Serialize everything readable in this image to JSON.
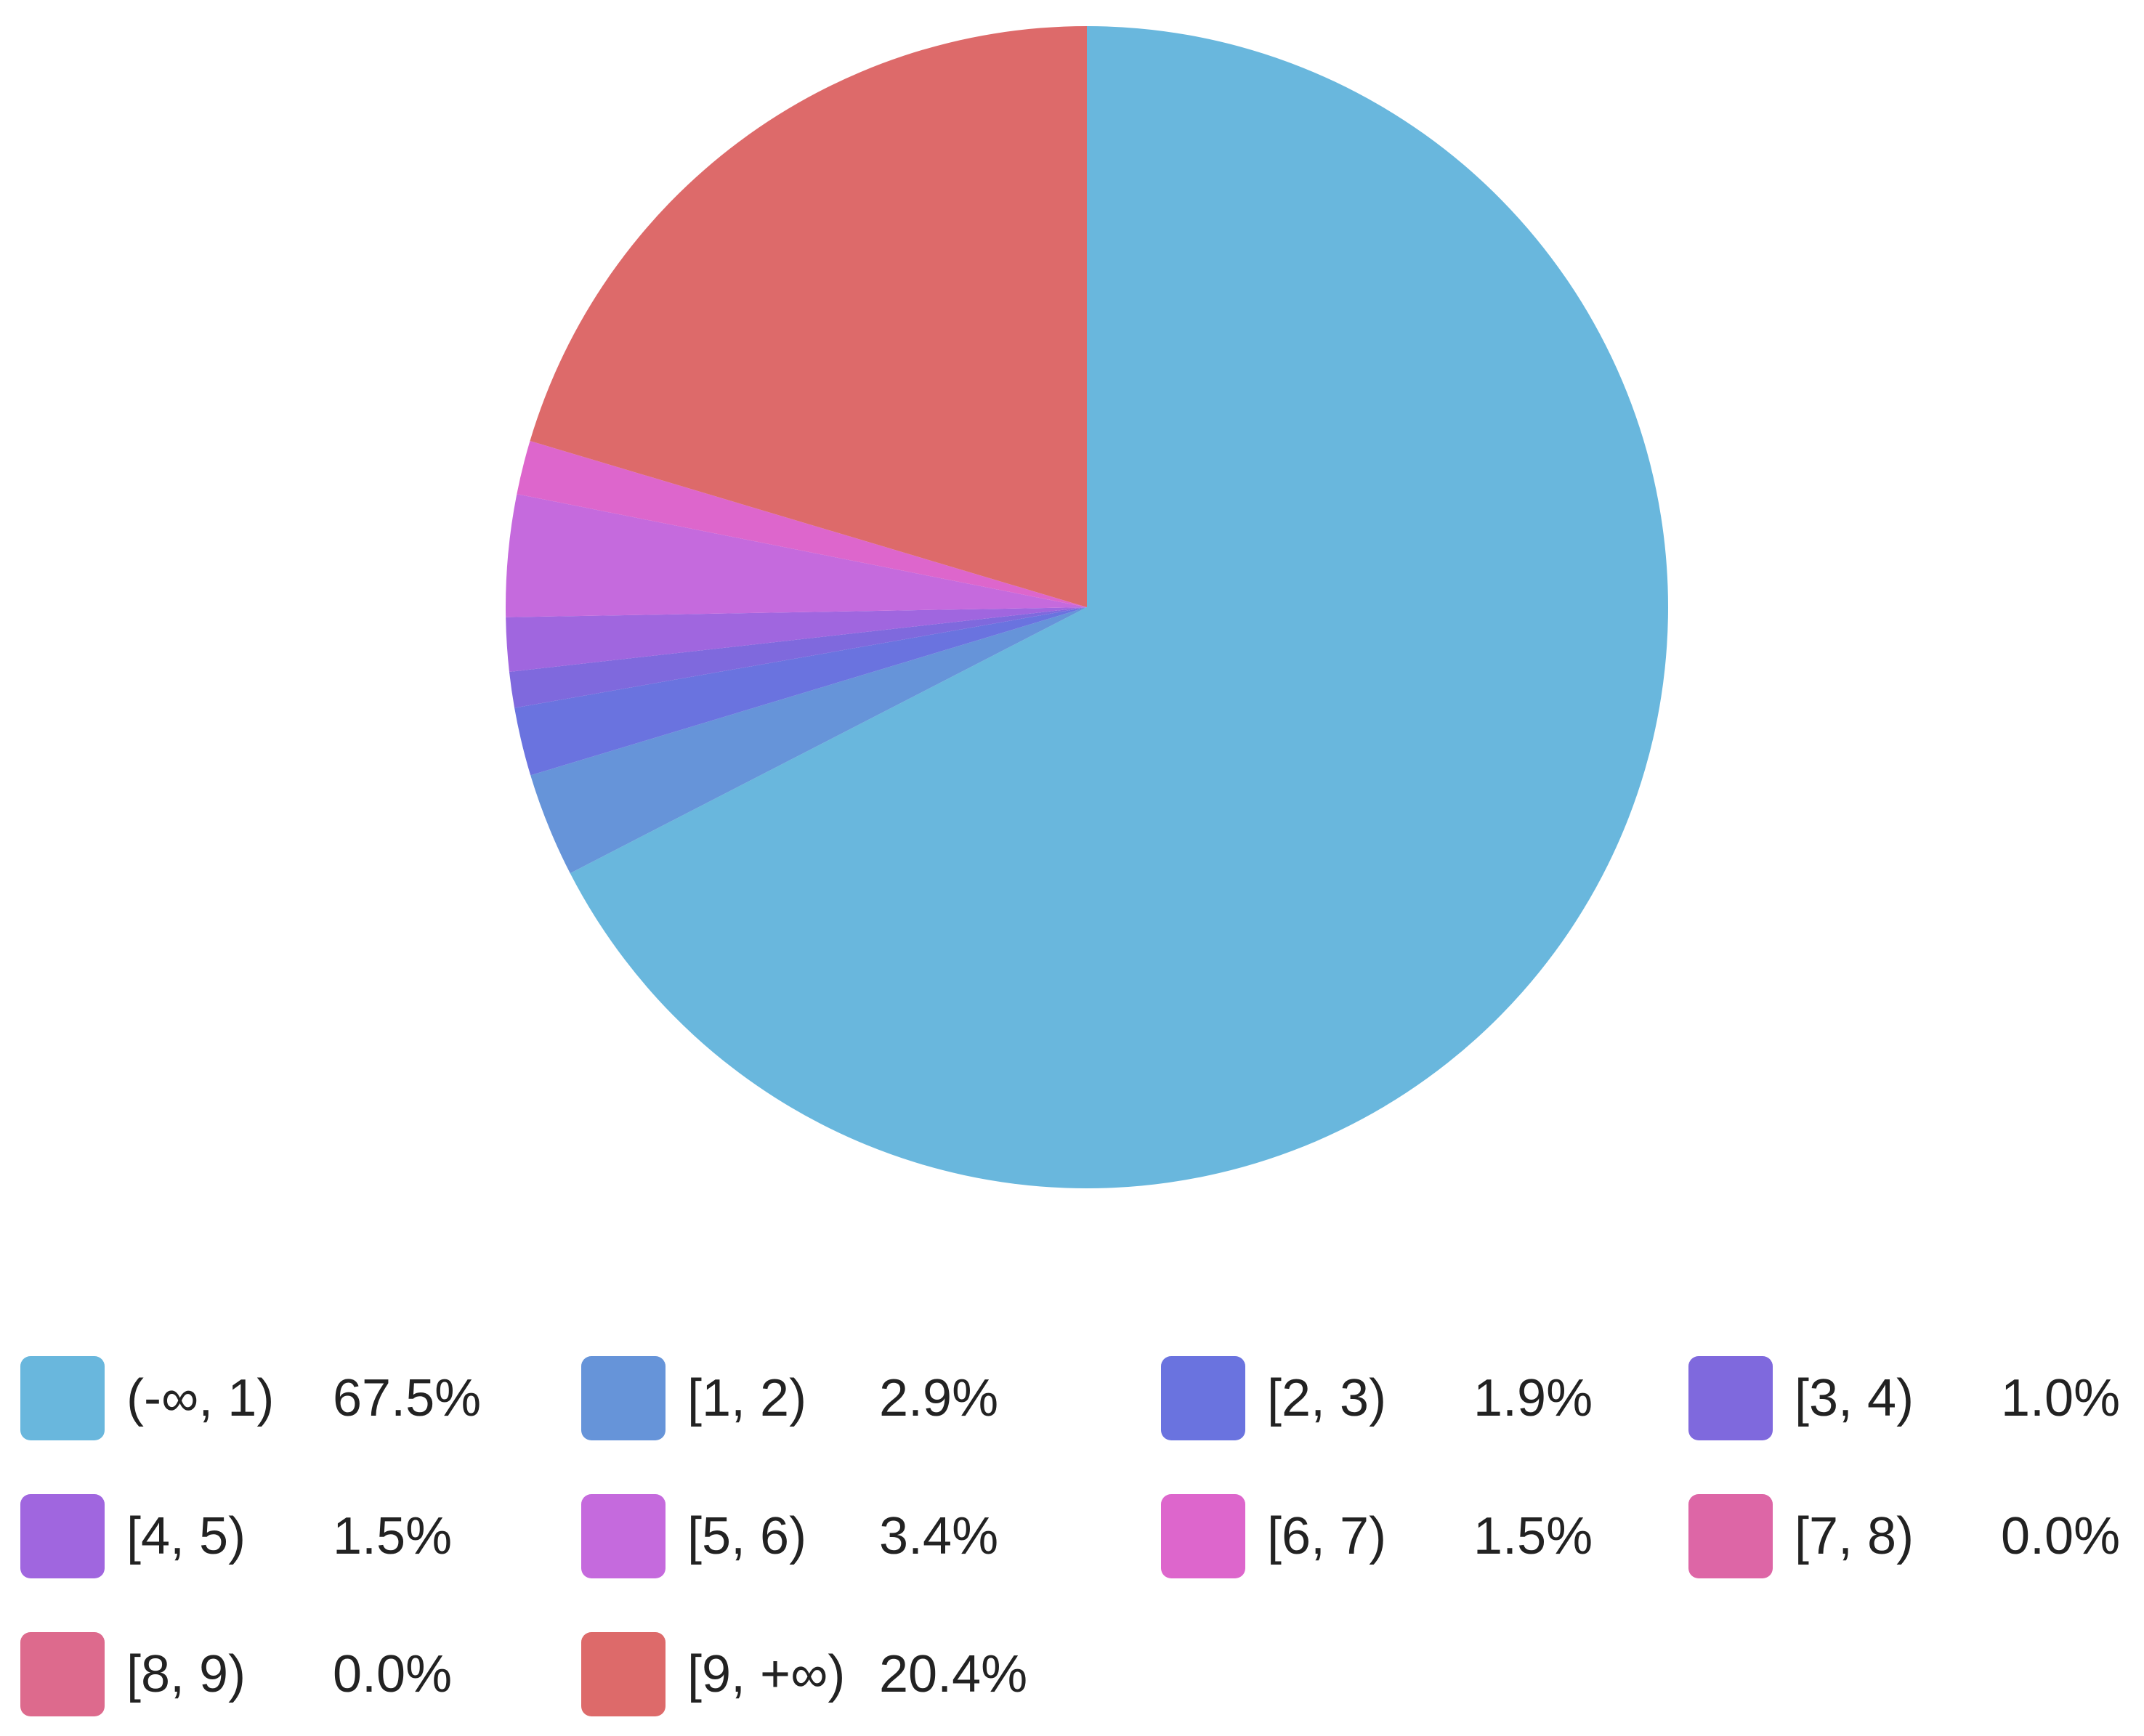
{
  "chart_data": {
    "type": "pie",
    "title": "",
    "legend_position": "bottom",
    "start_angle_deg": 0,
    "direction": "clockwise",
    "slices": [
      {
        "label": "(-∞, 1)",
        "value": 67.5,
        "value_text": "67.5%",
        "color": "#69b7dd"
      },
      {
        "label": "[1, 2)",
        "value": 2.9,
        "value_text": "2.9%",
        "color": "#6694d9"
      },
      {
        "label": "[2, 3)",
        "value": 1.9,
        "value_text": "1.9%",
        "color": "#6a73df"
      },
      {
        "label": "[3, 4)",
        "value": 1.0,
        "value_text": "1.0%",
        "color": "#7f69dd"
      },
      {
        "label": "[4, 5)",
        "value": 1.5,
        "value_text": "1.5%",
        "color": "#a066df"
      },
      {
        "label": "[5, 6)",
        "value": 3.4,
        "value_text": "3.4%",
        "color": "#c56add"
      },
      {
        "label": "[6, 7)",
        "value": 1.5,
        "value_text": "1.5%",
        "color": "#dd66cc"
      },
      {
        "label": "[7, 8)",
        "value": 0.0,
        "value_text": "0.0%",
        "color": "#dd66a6"
      },
      {
        "label": "[8, 9)",
        "value": 0.0,
        "value_text": "0.0%",
        "color": "#dd6a8d"
      },
      {
        "label": "[9, +∞)",
        "value": 20.4,
        "value_text": "20.4%",
        "color": "#dd6a6a"
      }
    ]
  }
}
